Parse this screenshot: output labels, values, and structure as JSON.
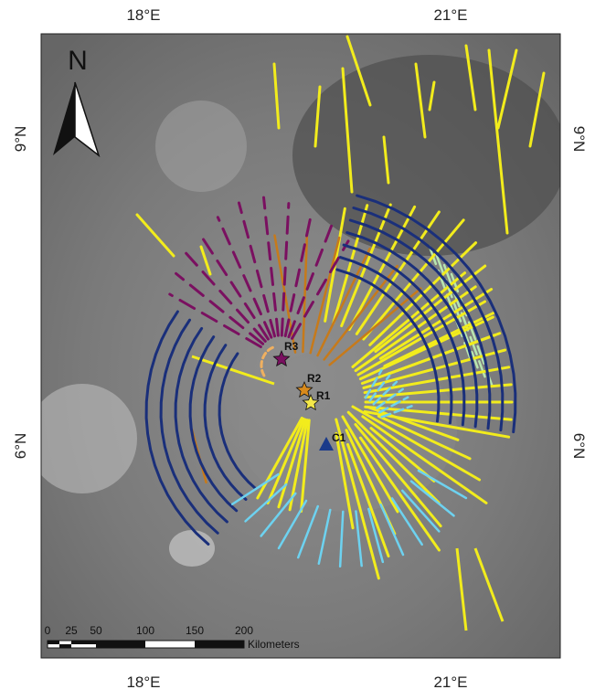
{
  "map": {
    "lon_labels": [
      "18°E",
      "21°E"
    ],
    "lat_labels": [
      "9°N",
      "6°N"
    ],
    "north": "N",
    "sites": [
      "R1",
      "R2",
      "R3",
      "C1"
    ],
    "scale": {
      "labels": [
        "0",
        "25",
        "50",
        "100",
        "150",
        "200"
      ],
      "unit": "Kilometers"
    }
  }
}
